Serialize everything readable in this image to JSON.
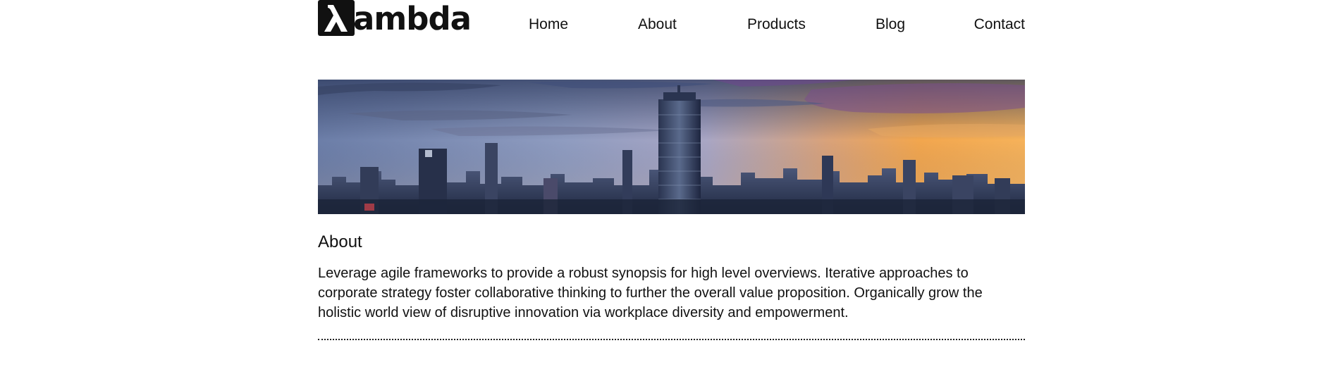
{
  "brand": {
    "logo_symbol": "λ",
    "logo_text": "ambda"
  },
  "nav": {
    "items": [
      {
        "label": "Home"
      },
      {
        "label": "About"
      },
      {
        "label": "Products"
      },
      {
        "label": "Blog"
      },
      {
        "label": "Contact"
      }
    ]
  },
  "hero": {
    "image": "city-skyline-sunset"
  },
  "about": {
    "title": "About",
    "body": "Leverage agile frameworks to provide a robust synopsis for high level overviews. Iterative approaches to corporate strategy foster collaborative thinking to further the overall value proposition. Organically grow the holistic world view of disruptive innovation via workplace diversity and empowerment."
  },
  "colors": {
    "text": "#111111",
    "background": "#ffffff",
    "sky_top": "#3b4a6b",
    "sky_sunset": "#f0a048",
    "city": "#2a3550"
  }
}
